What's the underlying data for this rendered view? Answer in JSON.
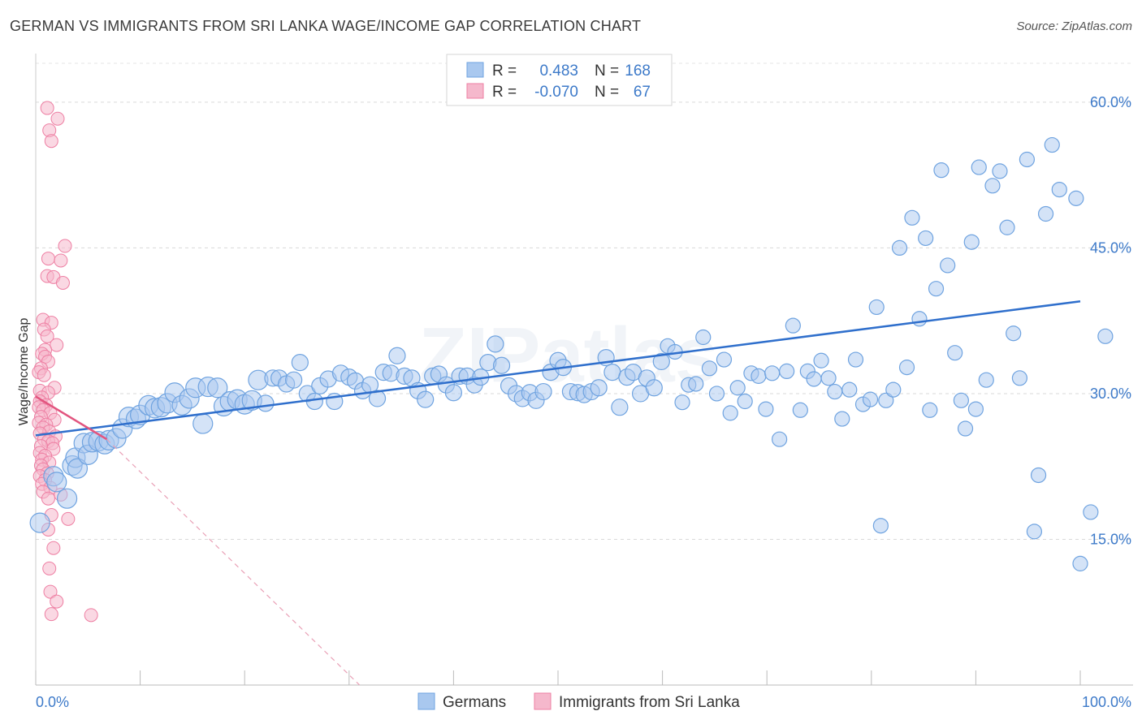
{
  "header": {
    "title": "GERMAN VS IMMIGRANTS FROM SRI LANKA WAGE/INCOME GAP CORRELATION CHART",
    "source": "Source: ZipAtlas.com"
  },
  "legend_top": {
    "rows": [
      {
        "r_label": "R =",
        "r_value": "0.483",
        "n_label": "N =",
        "n_value": "168",
        "color": "#a9c8ef"
      },
      {
        "r_label": "R =",
        "r_value": "-0.070",
        "n_label": "N =",
        "n_value": "67",
        "color": "#f5b8cc"
      }
    ]
  },
  "legend_bottom": [
    {
      "label": "Germans",
      "color": "#a9c8ef"
    },
    {
      "label": "Immigrants from Sri Lanka",
      "color": "#f5b8cc"
    }
  ],
  "chart_data": {
    "type": "scatter",
    "xlabel": "",
    "ylabel": "Wage/Income Gap",
    "xlim": [
      0,
      100
    ],
    "ylim": [
      0,
      64
    ],
    "x_tick_labels": [
      "0.0%",
      "100.0%"
    ],
    "y_ticks": [
      15,
      30,
      45,
      60
    ],
    "y_tick_labels": [
      "15.0%",
      "30.0%",
      "45.0%",
      "60.0%"
    ],
    "grid": true,
    "watermark": "ZIPatlas",
    "series": [
      {
        "name": "Germans",
        "color": "#6fa3e0",
        "fill": "#a9c8ef",
        "trend": {
          "x0": 0,
          "y0": 25.7,
          "x1": 100,
          "y1": 39.5,
          "color": "#2f6fcc"
        },
        "points": [
          [
            0.4,
            16.7
          ],
          [
            1.7,
            21.5
          ],
          [
            2,
            20.9
          ],
          [
            3,
            19.2
          ],
          [
            3.5,
            22.6
          ],
          [
            3.8,
            23.4
          ],
          [
            4,
            22.3
          ],
          [
            4.6,
            24.9
          ],
          [
            5,
            23.7
          ],
          [
            5.4,
            25
          ],
          [
            6,
            25.1
          ],
          [
            6.6,
            24.8
          ],
          [
            7,
            25.2
          ],
          [
            7.7,
            25.4
          ],
          [
            8.3,
            26.4
          ],
          [
            8.9,
            27.6
          ],
          [
            9.6,
            27.4
          ],
          [
            10,
            27.8
          ],
          [
            10.8,
            28.8
          ],
          [
            11.4,
            28.5
          ],
          [
            12,
            28.6
          ],
          [
            12.6,
            29
          ],
          [
            13.3,
            30.1
          ],
          [
            14,
            28.8
          ],
          [
            14.7,
            29.5
          ],
          [
            15.3,
            30.6
          ],
          [
            16,
            26.9
          ],
          [
            16.5,
            30.7
          ],
          [
            17.4,
            30.6
          ],
          [
            18,
            28.7
          ],
          [
            18.6,
            29.2
          ],
          [
            19.3,
            29.4
          ],
          [
            20,
            28.9
          ],
          [
            20.7,
            29.3
          ],
          [
            21.3,
            31.4
          ],
          [
            22,
            29
          ],
          [
            22.7,
            31.6
          ],
          [
            23.3,
            31.6
          ],
          [
            24,
            31
          ],
          [
            24.7,
            31.4
          ],
          [
            25.3,
            33.2
          ],
          [
            26,
            30
          ],
          [
            26.7,
            29.2
          ],
          [
            27.2,
            30.8
          ],
          [
            28,
            31.5
          ],
          [
            28.6,
            29.2
          ],
          [
            29.2,
            32.1
          ],
          [
            30,
            31.7
          ],
          [
            30.6,
            31.3
          ],
          [
            31.3,
            30.3
          ],
          [
            32,
            30.9
          ],
          [
            32.7,
            29.5
          ],
          [
            33.3,
            32.2
          ],
          [
            34,
            32.1
          ],
          [
            34.6,
            33.9
          ],
          [
            35.3,
            31.8
          ],
          [
            36,
            31.6
          ],
          [
            36.6,
            30.3
          ],
          [
            37.3,
            29.4
          ],
          [
            38,
            31.8
          ],
          [
            38.6,
            32
          ],
          [
            39.3,
            30.9
          ],
          [
            40,
            30.1
          ],
          [
            40.6,
            31.8
          ],
          [
            41.3,
            31.8
          ],
          [
            42,
            30.9
          ],
          [
            42.6,
            31.7
          ],
          [
            43.3,
            33.2
          ],
          [
            44,
            35.1
          ],
          [
            44.6,
            32.9
          ],
          [
            45.3,
            30.8
          ],
          [
            46,
            30
          ],
          [
            46.6,
            29.5
          ],
          [
            47.3,
            30.1
          ],
          [
            47.9,
            29.3
          ],
          [
            48.6,
            30.2
          ],
          [
            49.3,
            32.2
          ],
          [
            50,
            33.4
          ],
          [
            50.5,
            32.7
          ],
          [
            51.2,
            30.2
          ],
          [
            51.9,
            30.1
          ],
          [
            52.5,
            29.9
          ],
          [
            53.2,
            30.2
          ],
          [
            53.9,
            30.6
          ],
          [
            54.6,
            33.7
          ],
          [
            55.2,
            32.2
          ],
          [
            55.9,
            28.6
          ],
          [
            56.6,
            31.7
          ],
          [
            57.2,
            32.2
          ],
          [
            57.9,
            30
          ],
          [
            58.5,
            31.6
          ],
          [
            59.2,
            30.6
          ],
          [
            59.9,
            33.3
          ],
          [
            60.5,
            34.9
          ],
          [
            61.2,
            34.3
          ],
          [
            61.9,
            29.1
          ],
          [
            62.5,
            30.9
          ],
          [
            63.2,
            31
          ],
          [
            63.9,
            35.8
          ],
          [
            64.5,
            32.6
          ],
          [
            65.2,
            30
          ],
          [
            65.9,
            33.5
          ],
          [
            66.5,
            28
          ],
          [
            67.2,
            30.6
          ],
          [
            67.9,
            29.2
          ],
          [
            68.5,
            32.1
          ],
          [
            69.2,
            31.8
          ],
          [
            69.9,
            28.4
          ],
          [
            70.5,
            32.1
          ],
          [
            71.2,
            25.3
          ],
          [
            71.9,
            32.3
          ],
          [
            72.5,
            37
          ],
          [
            73.2,
            28.3
          ],
          [
            73.9,
            32.3
          ],
          [
            74.5,
            31.5
          ],
          [
            75.2,
            33.4
          ],
          [
            75.9,
            31.6
          ],
          [
            76.5,
            30.2
          ],
          [
            77.2,
            27.4
          ],
          [
            77.9,
            30.4
          ],
          [
            78.5,
            33.5
          ],
          [
            79.2,
            28.9
          ],
          [
            79.9,
            29.4
          ],
          [
            80.5,
            38.9
          ],
          [
            80.9,
            16.4
          ],
          [
            81.4,
            29.3
          ],
          [
            82.1,
            30.4
          ],
          [
            82.7,
            45
          ],
          [
            83.4,
            32.7
          ],
          [
            83.9,
            48.1
          ],
          [
            84.6,
            37.7
          ],
          [
            85.2,
            46
          ],
          [
            85.6,
            28.3
          ],
          [
            86.2,
            40.8
          ],
          [
            86.7,
            53
          ],
          [
            87.3,
            43.2
          ],
          [
            88,
            34.2
          ],
          [
            88.6,
            29.3
          ],
          [
            89,
            26.4
          ],
          [
            89.6,
            45.6
          ],
          [
            90,
            28.4
          ],
          [
            90.3,
            53.3
          ],
          [
            91,
            31.4
          ],
          [
            91.6,
            51.4
          ],
          [
            92.3,
            52.9
          ],
          [
            93,
            47.1
          ],
          [
            93.6,
            36.2
          ],
          [
            94.2,
            31.6
          ],
          [
            94.9,
            54.1
          ],
          [
            95.6,
            15.8
          ],
          [
            96,
            21.6
          ],
          [
            96.7,
            48.5
          ],
          [
            97.3,
            55.6
          ],
          [
            98,
            51
          ],
          [
            99.6,
            50.1
          ],
          [
            100,
            12.5
          ],
          [
            101,
            17.8
          ],
          [
            102.4,
            35.9
          ]
        ]
      },
      {
        "name": "Immigrants from Sri Lanka",
        "color": "#ee7fa3",
        "fill": "#f5b8cc",
        "trend": {
          "x0": 0,
          "y0": 29.7,
          "x1": 6.8,
          "y1": 25.3,
          "color": "#e2557f"
        },
        "trend_dashed": {
          "x0": 6.8,
          "y0": 25.3,
          "x1": 31,
          "y1": 0,
          "color": "#e9a0b6"
        },
        "points": [
          [
            1.1,
            59.4
          ],
          [
            2.1,
            58.3
          ],
          [
            1.3,
            57.1
          ],
          [
            1.5,
            56
          ],
          [
            2.8,
            45.2
          ],
          [
            1.2,
            43.9
          ],
          [
            2.4,
            43.7
          ],
          [
            1.1,
            42.1
          ],
          [
            1.7,
            42
          ],
          [
            2.6,
            41.4
          ],
          [
            0.7,
            37.6
          ],
          [
            1.5,
            37.3
          ],
          [
            0.8,
            36.6
          ],
          [
            1.1,
            35.9
          ],
          [
            2,
            35
          ],
          [
            0.9,
            34.5
          ],
          [
            0.6,
            34.1
          ],
          [
            0.9,
            33.8
          ],
          [
            1.2,
            33.3
          ],
          [
            0.5,
            32.6
          ],
          [
            0.3,
            32.2
          ],
          [
            0.8,
            31.9
          ],
          [
            1.8,
            30.6
          ],
          [
            0.4,
            30.3
          ],
          [
            1.2,
            30.1
          ],
          [
            0.6,
            29.6
          ],
          [
            0.4,
            29.2
          ],
          [
            1,
            28.8
          ],
          [
            0.3,
            28.6
          ],
          [
            0.7,
            28.3
          ],
          [
            1.4,
            28
          ],
          [
            0.5,
            27.6
          ],
          [
            1.8,
            27.3
          ],
          [
            0.3,
            27
          ],
          [
            1,
            26.8
          ],
          [
            0.7,
            26.5
          ],
          [
            1.3,
            26.1
          ],
          [
            0.4,
            25.9
          ],
          [
            1.9,
            25.6
          ],
          [
            0.8,
            25.3
          ],
          [
            1.2,
            25.1
          ],
          [
            1.6,
            24.9
          ],
          [
            0.5,
            24.6
          ],
          [
            1.7,
            24.3
          ],
          [
            0.4,
            23.9
          ],
          [
            0.9,
            23.6
          ],
          [
            0.6,
            23.2
          ],
          [
            1.3,
            22.9
          ],
          [
            0.5,
            22.6
          ],
          [
            0.7,
            22.2
          ],
          [
            1.1,
            21.8
          ],
          [
            0.4,
            21.5
          ],
          [
            0.9,
            21.1
          ],
          [
            0.6,
            20.7
          ],
          [
            1.4,
            20.3
          ],
          [
            0.7,
            19.9
          ],
          [
            2.4,
            19.6
          ],
          [
            1.2,
            19.2
          ],
          [
            1.5,
            17.5
          ],
          [
            3.1,
            17.1
          ],
          [
            1.2,
            16
          ],
          [
            1.7,
            14.1
          ],
          [
            1.3,
            12
          ],
          [
            1.4,
            9.6
          ],
          [
            2,
            8.6
          ],
          [
            1.5,
            7.3
          ],
          [
            5.3,
            7.2
          ]
        ]
      }
    ]
  }
}
